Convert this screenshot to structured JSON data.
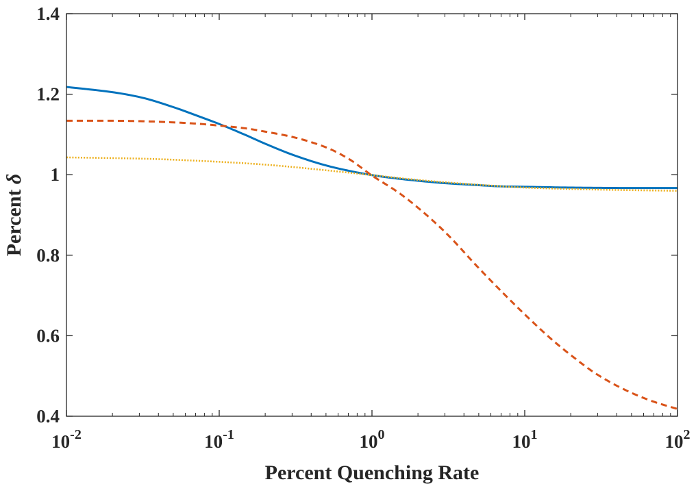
{
  "chart_data": {
    "type": "line",
    "xlabel": "Percent Quenching Rate",
    "ylabel": {
      "prefix": "Percent ",
      "symbol": "δ"
    },
    "x_scale": "log",
    "xlim": [
      0.01,
      100
    ],
    "ylim": [
      0.4,
      1.4
    ],
    "x_ticks": [
      {
        "value": 0.01,
        "base": "10",
        "exponent": "-2"
      },
      {
        "value": 0.1,
        "base": "10",
        "exponent": "-1"
      },
      {
        "value": 1,
        "base": "10",
        "exponent": "0"
      },
      {
        "value": 10,
        "base": "10",
        "exponent": "1"
      },
      {
        "value": 100,
        "base": "10",
        "exponent": "2"
      }
    ],
    "y_ticks": [
      {
        "value": 0.4,
        "label": "0.4"
      },
      {
        "value": 0.6,
        "label": "0.6"
      },
      {
        "value": 0.8,
        "label": "0.8"
      },
      {
        "value": 1.0,
        "label": "1"
      },
      {
        "value": 1.2,
        "label": "1.2"
      },
      {
        "value": 1.4,
        "label": "1.4"
      }
    ],
    "grid": false,
    "legend": false,
    "series": [
      {
        "style": "solid",
        "color": "#0072BD",
        "x": [
          0.01,
          0.02,
          0.03,
          0.05,
          0.07,
          0.1,
          0.15,
          0.2,
          0.3,
          0.5,
          0.7,
          1,
          1.5,
          2,
          3,
          5,
          7,
          10,
          20,
          50,
          100
        ],
        "y": [
          1.218,
          1.205,
          1.193,
          1.168,
          1.148,
          1.126,
          1.098,
          1.077,
          1.05,
          1.023,
          1.01,
          0.999,
          0.99,
          0.985,
          0.979,
          0.974,
          0.971,
          0.97,
          0.968,
          0.967,
          0.967
        ]
      },
      {
        "style": "dashed",
        "color": "#D95319",
        "x": [
          0.01,
          0.02,
          0.03,
          0.05,
          0.07,
          0.1,
          0.15,
          0.2,
          0.3,
          0.5,
          0.7,
          1,
          1.5,
          2,
          3,
          5,
          7,
          10,
          15,
          20,
          30,
          50,
          70,
          100
        ],
        "y": [
          1.134,
          1.134,
          1.133,
          1.13,
          1.127,
          1.122,
          1.115,
          1.107,
          1.094,
          1.068,
          1.04,
          0.998,
          0.955,
          0.918,
          0.858,
          0.768,
          0.711,
          0.653,
          0.591,
          0.552,
          0.503,
          0.458,
          0.436,
          0.418
        ]
      },
      {
        "style": "dotted",
        "color": "#EDB120",
        "x": [
          0.01,
          0.03,
          0.1,
          0.2,
          0.5,
          1,
          2,
          5,
          10,
          30,
          100
        ],
        "y": [
          1.043,
          1.04,
          1.032,
          1.025,
          1.011,
          0.999,
          0.987,
          0.975,
          0.968,
          0.963,
          0.96
        ]
      }
    ]
  }
}
